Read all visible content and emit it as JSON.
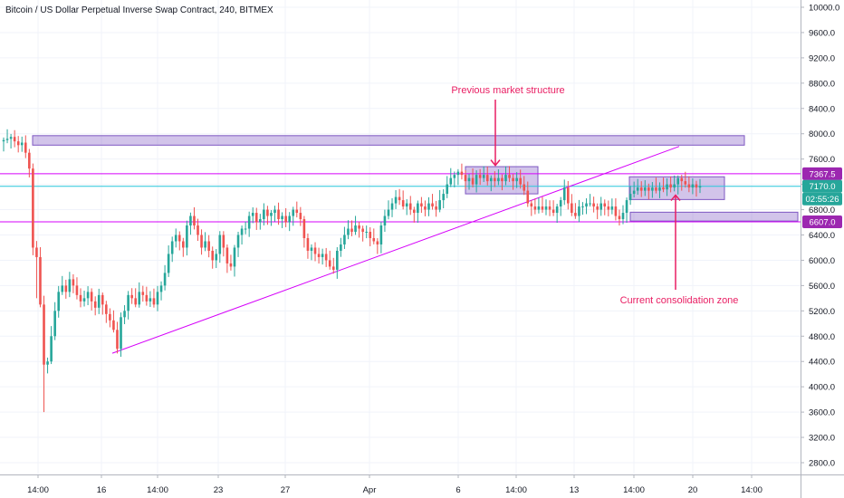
{
  "title": "Bitcoin / US Dollar Perpetual Inverse Swap Contract, 240, BITMEX",
  "colors": {
    "up": "#26a69a",
    "down": "#ef5350",
    "zone_fill": "rgba(126,87,194,0.35)",
    "zone_stroke": "#7e57c2",
    "level_line": "#d500f9",
    "last_price_line": "#26c6da",
    "annotation": "#e91e63",
    "badge_purple": "#9c27b0",
    "badge_green": "#26a69a",
    "grid": "#f0f3fa"
  },
  "chart_data": {
    "type": "candlestick",
    "symbol": "Bitcoin / US Dollar Perpetual Inverse Swap Contract",
    "interval": "240",
    "exchange": "BITMEX",
    "y_ticks": [
      2800,
      3200,
      3600,
      4000,
      4400,
      4800,
      5200,
      5600,
      6000,
      6400,
      6800,
      7200,
      7600,
      8000,
      8400,
      8800,
      9200,
      9600,
      10000
    ],
    "y_tick_labels": [
      "2800.0",
      "3200.0",
      "3600.0",
      "4000.0",
      "4400.0",
      "4800.0",
      "5200.0",
      "5600.0",
      "6000.0",
      "6400.0",
      "6800.0",
      "7200.0",
      "7600.0",
      "8000.0",
      "8400.0",
      "8800.0",
      "9200.0",
      "9600.0",
      "10000.0"
    ],
    "x_tick_labels": [
      "14:00",
      "16",
      "14:00",
      "23",
      "27",
      "Apr",
      "6",
      "14:00",
      "13",
      "14:00",
      "20",
      "14:00"
    ],
    "ylim": [
      2550,
      10100
    ],
    "grid": true,
    "horizontal_levels": [
      {
        "price": 7367.5,
        "label": "7367.5",
        "style": "level"
      },
      {
        "price": 6607.0,
        "label": "6607.0",
        "style": "level"
      },
      {
        "price": 7170.0,
        "label": "7170.0",
        "style": "last"
      }
    ],
    "countdown_label": "02:55:26",
    "zones": [
      {
        "top": 7970,
        "bottom": 7820,
        "name": "upper-resistance-zone"
      },
      {
        "top": 7480,
        "bottom": 7050,
        "name": "previous-structure-zone"
      },
      {
        "top": 7320,
        "bottom": 6960,
        "name": "consolidation-zone"
      },
      {
        "top": 6760,
        "bottom": 6620,
        "name": "lower-support-zone"
      }
    ],
    "trendline": {
      "from_price": 4530,
      "to_price": 7800
    },
    "annotations": [
      {
        "text": "Previous market structure",
        "arrow_to_price": 7500
      },
      {
        "text": "Current consolidation zone",
        "arrow_to_price": 7030
      }
    ],
    "close_series": [
      7900,
      7920,
      7950,
      7880,
      7820,
      7860,
      7700,
      7450,
      6200,
      6050,
      5300,
      4350,
      4400,
      4800,
      5200,
      5500,
      5600,
      5500,
      5700,
      5600,
      5450,
      5350,
      5400,
      5500,
      5350,
      5250,
      5450,
      5300,
      5150,
      5050,
      4900,
      4600,
      5100,
      5200,
      5450,
      5400,
      5300,
      5500,
      5450,
      5350,
      5400,
      5300,
      5500,
      5600,
      5800,
      6100,
      6300,
      6400,
      6300,
      6200,
      6550,
      6700,
      6550,
      6400,
      6200,
      6300,
      6150,
      6000,
      6100,
      6400,
      6200,
      5950,
      5900,
      6200,
      6400,
      6500,
      6500,
      6700,
      6750,
      6600,
      6650,
      6800,
      6700,
      6750,
      6800,
      6650,
      6700,
      6600,
      6700,
      6800,
      6750,
      6650,
      6350,
      6150,
      6200,
      6100,
      6050,
      6100,
      6000,
      5900,
      5850,
      6150,
      6250,
      6400,
      6500,
      6450,
      6550,
      6500,
      6450,
      6450,
      6350,
      6300,
      6250,
      6550,
      6700,
      6800,
      6900,
      7000,
      6950,
      6850,
      6900,
      6800,
      6750,
      6900,
      6850,
      6800,
      6900,
      6850,
      6800,
      6950,
      7050,
      7200,
      7300,
      7350,
      7400,
      7350,
      7250,
      7300,
      7200,
      7350,
      7300,
      7350,
      7250,
      7300,
      7250,
      7300,
      7250,
      7350,
      7300,
      7250,
      7300,
      7200,
      7100,
      6900,
      6850,
      6800,
      6850,
      6800,
      6850,
      6800,
      6750,
      6850,
      6950,
      7150,
      6900,
      6750,
      6700,
      6850,
      6850,
      6900,
      6900,
      6850,
      6800,
      6900,
      6850,
      6800,
      6850,
      6700,
      6650,
      6750,
      6950,
      7050,
      7100,
      7150,
      7100,
      7150,
      7100,
      7150,
      7100,
      7150,
      7120,
      7200,
      7150,
      7200,
      7300,
      7250,
      7200,
      7150,
      7200,
      7150,
      7170
    ]
  }
}
